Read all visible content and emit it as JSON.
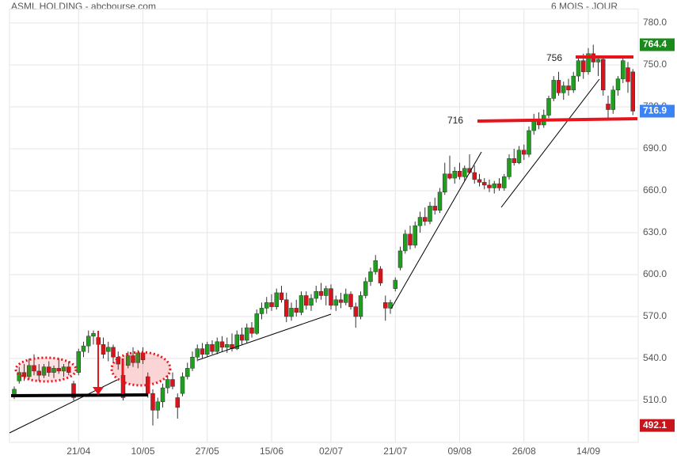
{
  "chart_data": {
    "type": "candlestick",
    "title": "ASML HOLDING - abcbourse.com",
    "subtitle": "6 MOIS - JOUR",
    "up_color": "#1f9e1f",
    "down_color": "#d7141b",
    "grid": true,
    "ylim": [
      480,
      790
    ],
    "yticks": [
      {
        "value": 510,
        "label": "510.0"
      },
      {
        "value": 540,
        "label": "540.0"
      },
      {
        "value": 570,
        "label": "570.0"
      },
      {
        "value": 600,
        "label": "600.0"
      },
      {
        "value": 630,
        "label": "630.0"
      },
      {
        "value": 660,
        "label": "660.0"
      },
      {
        "value": 690,
        "label": "690.0"
      },
      {
        "value": 720,
        "label": "720.0"
      },
      {
        "value": 750,
        "label": "750.0"
      },
      {
        "value": 780,
        "label": "780.0"
      }
    ],
    "categories": [
      null,
      null,
      null,
      null,
      null,
      null,
      null,
      null,
      null,
      null,
      null,
      null,
      null,
      "21/04",
      null,
      null,
      null,
      null,
      null,
      null,
      null,
      null,
      null,
      null,
      null,
      null,
      "10/05",
      null,
      null,
      null,
      null,
      null,
      null,
      null,
      null,
      null,
      null,
      null,
      null,
      "27/05",
      null,
      null,
      null,
      null,
      null,
      null,
      null,
      null,
      null,
      null,
      null,
      null,
      "15/06",
      null,
      null,
      null,
      null,
      null,
      null,
      null,
      null,
      null,
      null,
      null,
      "02/07",
      null,
      null,
      null,
      null,
      null,
      null,
      null,
      null,
      null,
      null,
      null,
      null,
      "21/07",
      null,
      null,
      null,
      null,
      null,
      null,
      null,
      null,
      null,
      null,
      null,
      null,
      "09/08",
      null,
      null,
      null,
      null,
      null,
      null,
      null,
      null,
      null,
      null,
      null,
      null,
      "26/08",
      null,
      null,
      null,
      null,
      null,
      null,
      null,
      null,
      null,
      null,
      null,
      null,
      "14/09",
      null,
      null,
      null,
      null,
      null,
      null,
      null,
      null,
      null
    ],
    "ohlc": [
      [
        513,
        520,
        511,
        518
      ],
      [
        524,
        534,
        522,
        530
      ],
      [
        530,
        536,
        524,
        527
      ],
      [
        527,
        540,
        525,
        535
      ],
      [
        535,
        543,
        528,
        531
      ],
      [
        531,
        536,
        524,
        528
      ],
      [
        528,
        536,
        526,
        534
      ],
      [
        534,
        538,
        527,
        530
      ],
      [
        530,
        535,
        526,
        533
      ],
      [
        533,
        540,
        529,
        531
      ],
      [
        531,
        536,
        527,
        534
      ],
      [
        534,
        538,
        528,
        530
      ],
      [
        522,
        524,
        510,
        512
      ],
      [
        530,
        547,
        528,
        545
      ],
      [
        545,
        552,
        541,
        549
      ],
      [
        549,
        560,
        544,
        556
      ],
      [
        556,
        560,
        550,
        558
      ],
      [
        555,
        558,
        547,
        550
      ],
      [
        550,
        555,
        540,
        543
      ],
      [
        545,
        552,
        538,
        548
      ],
      [
        548,
        550,
        537,
        541
      ],
      [
        541,
        545,
        532,
        536
      ],
      [
        528,
        530,
        510,
        512
      ],
      [
        535,
        545,
        533,
        542
      ],
      [
        542,
        548,
        534,
        537
      ],
      [
        537,
        546,
        533,
        544
      ],
      [
        544,
        548,
        536,
        539
      ],
      [
        527,
        530,
        512,
        515
      ],
      [
        515,
        518,
        492.1,
        503
      ],
      [
        503,
        512,
        497,
        509
      ],
      [
        509,
        522,
        505,
        519
      ],
      [
        519,
        528,
        515,
        525
      ],
      [
        525,
        530,
        518,
        520
      ],
      [
        512,
        515,
        497,
        505
      ],
      [
        515,
        530,
        513,
        527
      ],
      [
        527,
        537,
        525,
        533
      ],
      [
        533,
        545,
        531,
        541
      ],
      [
        541,
        550,
        538,
        547
      ],
      [
        547,
        551,
        540,
        543
      ],
      [
        543,
        552,
        541,
        550
      ],
      [
        550,
        553,
        543,
        545
      ],
      [
        545,
        555,
        543,
        552
      ],
      [
        552,
        556,
        545,
        548
      ],
      [
        548,
        555,
        544,
        550
      ],
      [
        550,
        558,
        545,
        547
      ],
      [
        547,
        560,
        546,
        557
      ],
      [
        557,
        562,
        550,
        553
      ],
      [
        553,
        565,
        551,
        562
      ],
      [
        562,
        566,
        555,
        558
      ],
      [
        558,
        575,
        557,
        572
      ],
      [
        572,
        580,
        568,
        576
      ],
      [
        576,
        584,
        572,
        580
      ],
      [
        580,
        586,
        574,
        577
      ],
      [
        577,
        590,
        575,
        587
      ],
      [
        587,
        592,
        580,
        582
      ],
      [
        582,
        587,
        566,
        570
      ],
      [
        570,
        580,
        567,
        576
      ],
      [
        576,
        582,
        570,
        573
      ],
      [
        573,
        588,
        571,
        585
      ],
      [
        585,
        588,
        575,
        578
      ],
      [
        578,
        586,
        574,
        583
      ],
      [
        583,
        592,
        580,
        588
      ],
      [
        588,
        594,
        582,
        585
      ],
      [
        585,
        592,
        578,
        590
      ],
      [
        590,
        593,
        575,
        578
      ],
      [
        578,
        585,
        574,
        582
      ],
      [
        582,
        587,
        576,
        580
      ],
      [
        580,
        590,
        578,
        586
      ],
      [
        586,
        588,
        575,
        577
      ],
      [
        577,
        580,
        562,
        570
      ],
      [
        570,
        588,
        568,
        585
      ],
      [
        585,
        598,
        583,
        595
      ],
      [
        595,
        605,
        592,
        602
      ],
      [
        602,
        614,
        600,
        610
      ],
      [
        604,
        606,
        592,
        594
      ],
      [
        580,
        585,
        567,
        576
      ],
      [
        576,
        582,
        572,
        580
      ],
      [
        590,
        598,
        588,
        596
      ],
      [
        605,
        620,
        603,
        617
      ],
      [
        617,
        632,
        615,
        629
      ],
      [
        629,
        635,
        618,
        621
      ],
      [
        621,
        638,
        619,
        635
      ],
      [
        635,
        645,
        630,
        641
      ],
      [
        641,
        648,
        635,
        638
      ],
      [
        638,
        652,
        636,
        649
      ],
      [
        649,
        655,
        643,
        646
      ],
      [
        646,
        662,
        644,
        659
      ],
      [
        659,
        680,
        657,
        672
      ],
      [
        672,
        685,
        668,
        669
      ],
      [
        669,
        677,
        665,
        674
      ],
      [
        674,
        680,
        668,
        670
      ],
      [
        670,
        678,
        667,
        676
      ],
      [
        676,
        686,
        672,
        673
      ],
      [
        673,
        678,
        665,
        668
      ],
      [
        668,
        672,
        663,
        666
      ],
      [
        666,
        669,
        661,
        664
      ],
      [
        664,
        668,
        659,
        662
      ],
      [
        662,
        667,
        658,
        665
      ],
      [
        665,
        669,
        660,
        662
      ],
      [
        662,
        672,
        660,
        670
      ],
      [
        670,
        686,
        668,
        683
      ],
      [
        683,
        690,
        678,
        680
      ],
      [
        680,
        692,
        679,
        689
      ],
      [
        689,
        693,
        682,
        686
      ],
      [
        686,
        706,
        684,
        703
      ],
      [
        703,
        715,
        700,
        710
      ],
      [
        710,
        716,
        704,
        707
      ],
      [
        707,
        718,
        705,
        714
      ],
      [
        714,
        728,
        712,
        726
      ],
      [
        726,
        742,
        724,
        739
      ],
      [
        739,
        745,
        728,
        730
      ],
      [
        730,
        738,
        725,
        735
      ],
      [
        735,
        740,
        728,
        732
      ],
      [
        732,
        745,
        730,
        742
      ],
      [
        742,
        755,
        738,
        753
      ],
      [
        753,
        758,
        740,
        745
      ],
      [
        745,
        762,
        743,
        758
      ],
      [
        758,
        764.4,
        748,
        752
      ],
      [
        752,
        756,
        742,
        754
      ],
      [
        754,
        756,
        728,
        732
      ],
      [
        722,
        728,
        710,
        718
      ],
      [
        718,
        735,
        715,
        732
      ],
      [
        732,
        742,
        728,
        740
      ],
      [
        740,
        755,
        737,
        753
      ],
      [
        748,
        752,
        730,
        738
      ],
      [
        745,
        747,
        714,
        716.9
      ]
    ],
    "price_markers": {
      "high": 764.4,
      "last": 716.9,
      "low": 492.1
    },
    "annotations": [
      "756",
      "716"
    ]
  }
}
